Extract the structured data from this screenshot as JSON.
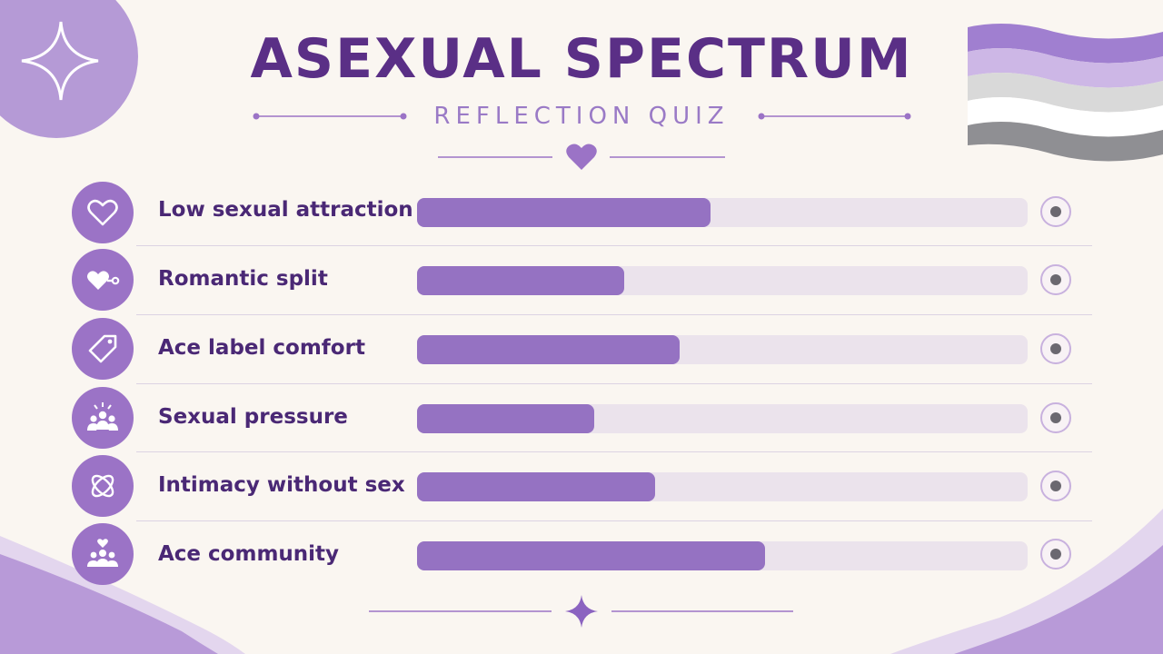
{
  "title": "ASEXUAL SPECTRUM",
  "subtitle": "REFLECTION QUIZ",
  "colors": {
    "background": "#faf6f1",
    "title": "#5a2f86",
    "subtitle": "#9a7ac6",
    "accent": "#9b73c6",
    "bar_fill": "#9572c2",
    "bar_track": "#ebe3ec",
    "label": "#4a2875"
  },
  "flag_colors": [
    "#a07fd0",
    "#cdb7e6",
    "#d9d9d9",
    "#ffffff",
    "#8f8f93"
  ],
  "items": [
    {
      "label": "Low sexual attraction",
      "icon": "heart-outline-icon",
      "level": 0.48
    },
    {
      "label": "Romantic split",
      "icon": "heart-key-icon",
      "level": 0.34
    },
    {
      "label": "Ace label comfort",
      "icon": "tag-icon",
      "level": 0.43
    },
    {
      "label": "Sexual pressure",
      "icon": "group-pressure-icon",
      "level": 0.29
    },
    {
      "label": "Intimacy without sex",
      "icon": "intertwined-rings-icon",
      "level": 0.39
    },
    {
      "label": "Ace community",
      "icon": "community-heart-icon",
      "level": 0.57
    }
  ]
}
